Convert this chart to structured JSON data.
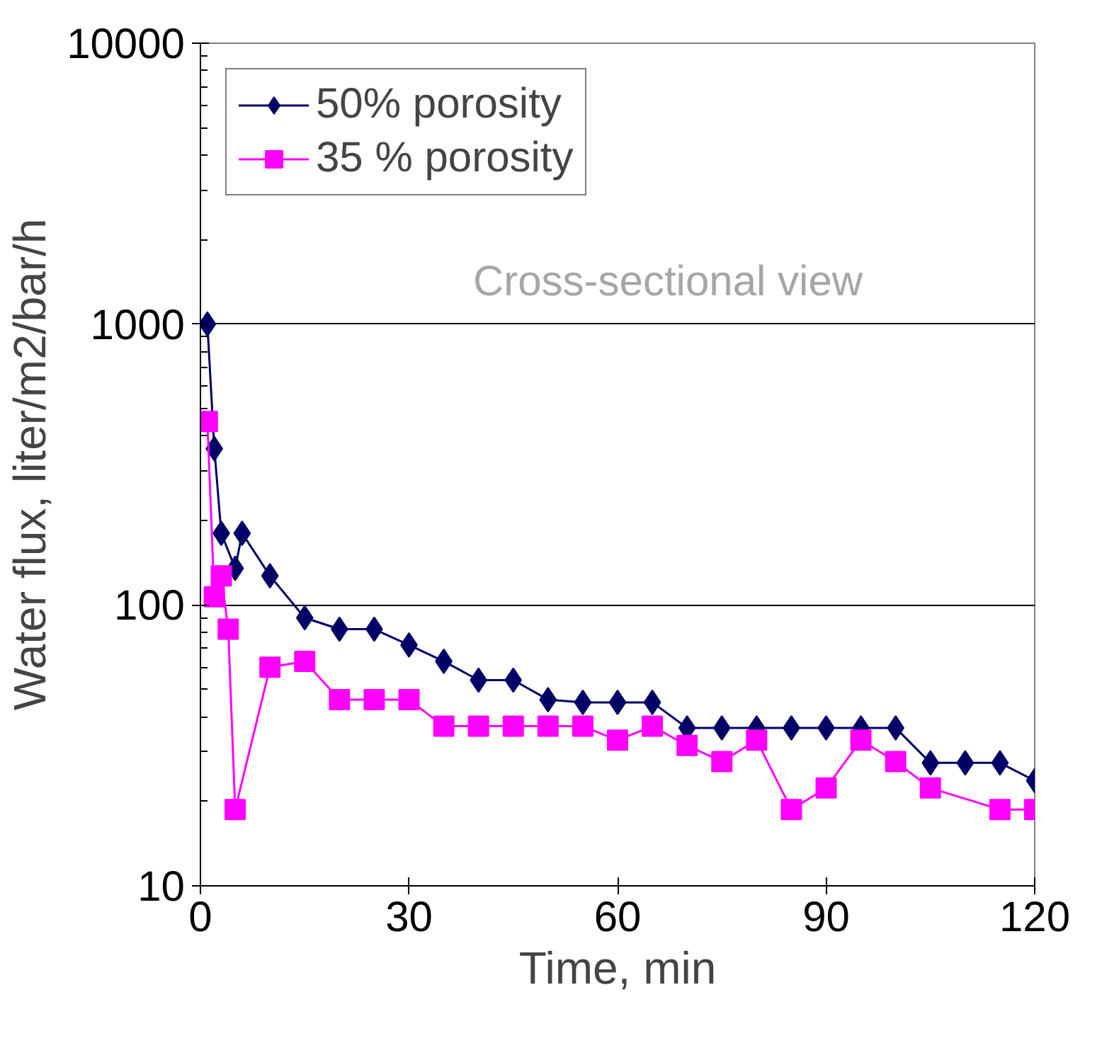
{
  "chart_data": {
    "type": "line",
    "xlabel": "Time, min",
    "ylabel": "Water flux, liter/m2/bar/h",
    "log": "y",
    "xlim": [
      0,
      120
    ],
    "xticks": [
      0,
      30,
      60,
      90,
      120
    ],
    "ylim": [
      10,
      10000
    ],
    "yticks": [
      10,
      100,
      1000,
      10000
    ],
    "grid": "y",
    "legend": "top left",
    "annotations": [
      "Cross-sectional view"
    ],
    "series": [
      {
        "name": "50% porosity",
        "color": "#000066",
        "marker": "diamond",
        "x": [
          1,
          2,
          3,
          5,
          6,
          10,
          15,
          20,
          25,
          30,
          35,
          40,
          45,
          50,
          55,
          60,
          65,
          70,
          75,
          80,
          85,
          90,
          95,
          100,
          105,
          110,
          115,
          120
        ],
        "values": [
          1000,
          360,
          180,
          135,
          180,
          127,
          90,
          82,
          82,
          72,
          63,
          54,
          54,
          46,
          45,
          45,
          45,
          36.5,
          36.5,
          36.5,
          36.5,
          36.5,
          36.5,
          36.5,
          27.4,
          27.4,
          27.4,
          23.7
        ]
      },
      {
        "name": "35 % porosity",
        "color": "#ff00ff",
        "marker": "square",
        "x": [
          1,
          2,
          3,
          4,
          5,
          10,
          15,
          20,
          25,
          30,
          35,
          40,
          45,
          50,
          55,
          60,
          65,
          70,
          75,
          80,
          85,
          90,
          95,
          100,
          105,
          115,
          120
        ],
        "values": [
          450,
          107,
          127,
          82,
          18.7,
          60,
          63,
          46,
          46,
          46,
          37,
          37,
          37,
          37,
          37,
          33,
          37,
          31.6,
          27.7,
          33,
          18.7,
          22.3,
          33,
          27.7,
          22.3,
          18.7,
          18.7
        ]
      }
    ]
  }
}
